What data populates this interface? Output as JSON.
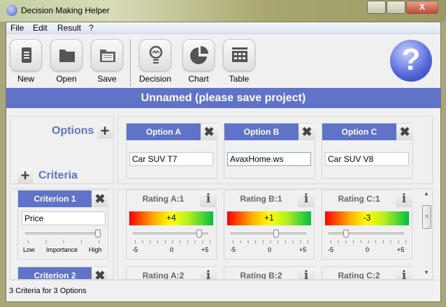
{
  "window": {
    "title": "Decision Making Helper",
    "minimize": "—",
    "maximize": "▢",
    "close": "X"
  },
  "menu": [
    "File",
    "Edit",
    "Result",
    "?"
  ],
  "toolbar": [
    {
      "label": "New",
      "icon": "new-document-icon"
    },
    {
      "label": "Open",
      "icon": "folder-icon"
    },
    {
      "label": "Save",
      "icon": "save-folder-icon"
    },
    {
      "label": "Decision",
      "icon": "lightbulb-icon"
    },
    {
      "label": "Chart",
      "icon": "pie-chart-icon"
    },
    {
      "label": "Table",
      "icon": "table-icon"
    }
  ],
  "logo": "?",
  "banner": "Unnamed (please save project)",
  "options_label": "Options",
  "criteria_label": "Criteria",
  "options": [
    {
      "header": "Option A",
      "value": "Car SUV T7"
    },
    {
      "header": "Option B",
      "value": "AvaxHome.ws"
    },
    {
      "header": "Option C",
      "value": "Car SUV V8"
    }
  ],
  "criteria": [
    {
      "header": "Criterion 1",
      "value": "Price",
      "importance": 1.0
    },
    {
      "header": "Criterion 2"
    }
  ],
  "importance_labels": {
    "low": "Low",
    "mid": "Importance",
    "high": "High"
  },
  "scale_labels": {
    "min": "-5",
    "mid": "0",
    "max": "+5"
  },
  "ratings_row1": [
    {
      "header": "Rating A:1",
      "display": "+4",
      "value": 4
    },
    {
      "header": "Rating B:1",
      "display": "+1",
      "value": 1
    },
    {
      "header": "Rating C:1",
      "display": "-3",
      "value": -3
    }
  ],
  "ratings_row2": [
    {
      "header": "Rating A:2"
    },
    {
      "header": "Rating B:2"
    },
    {
      "header": "Rating C:2"
    }
  ],
  "status": "3 Criteria for 3 Options",
  "colors": {
    "accent": "#5f73c9"
  }
}
